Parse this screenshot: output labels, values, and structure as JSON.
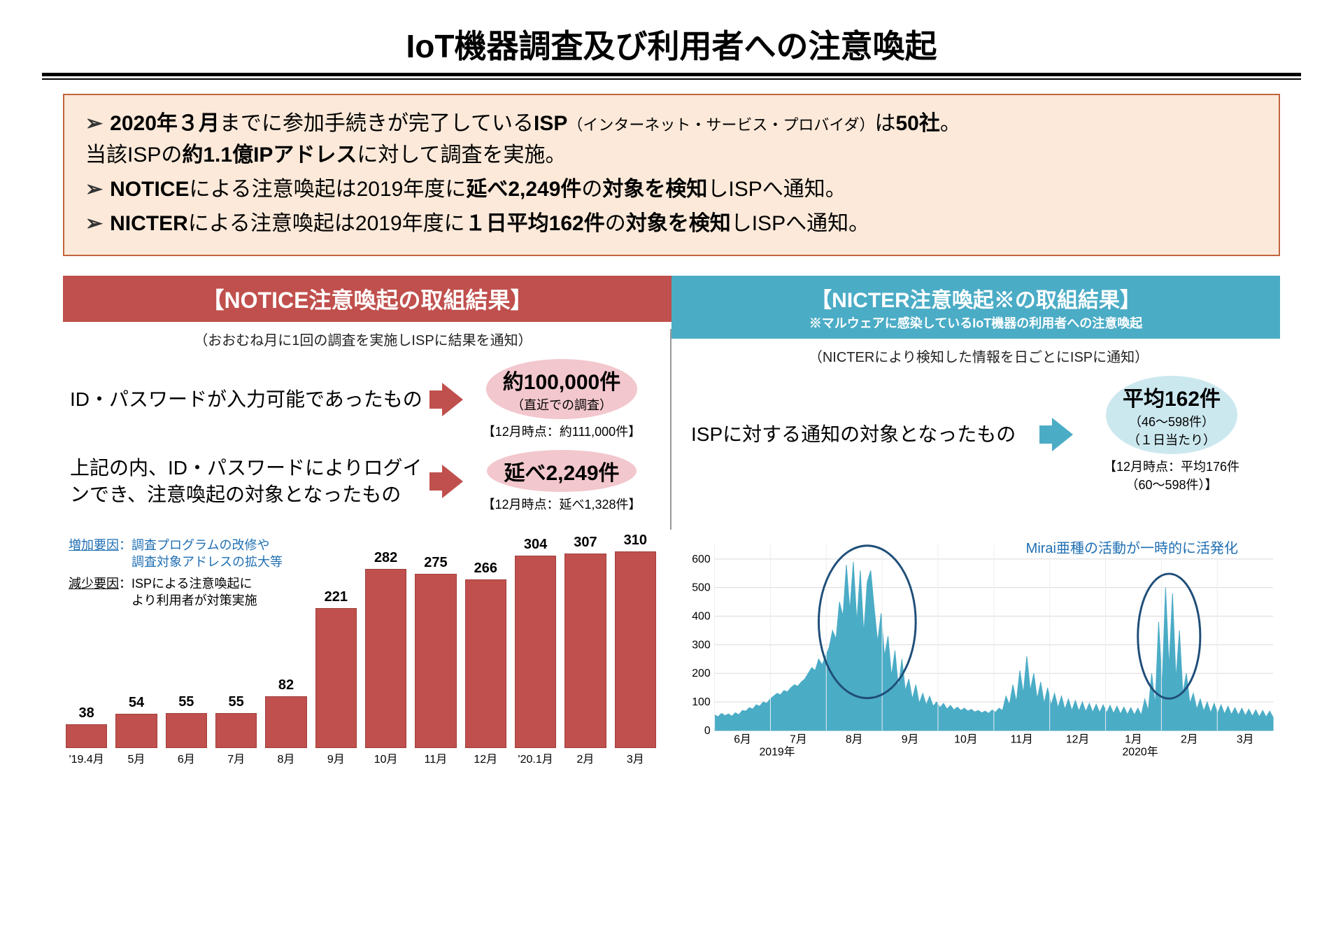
{
  "title": "IoT機器調査及び利用者への注意喚起",
  "summary": {
    "items": [
      "<b>2020年３月</b>までに参加手続きが完了している<b>ISP</b><span class='small'>（インターネット・サービス・プロバイダ）</span>は<b>50社</b>。<br>当該ISPの<b>約1.1億IPアドレス</b>に対して調査を実施。",
      "<b>NOTICE</b>による注意喚起は2019年度に<b>延べ2,249件</b>の<b>対象を検知</b>しISPへ通知。",
      "<b>NICTER</b>による注意喚起は2019年度に<b>１日平均162件</b>の<b>対象を検知</b>しISPへ通知。"
    ]
  },
  "panels": {
    "left": {
      "header": "【NOTICE注意喚起の取組結果】",
      "sub": "（おおむね月に1回の調査を実施しISPに結果を通知）",
      "stats": [
        {
          "desc": "ID・パスワードが入力可能であったもの",
          "big": "約100,000件",
          "small": "（直近での調査）",
          "note": "【12月時点：約111,000件】"
        },
        {
          "desc": "上記の内、ID・パスワードによりログインでき、注意喚起の対象となったもの",
          "big": "延べ2,249件",
          "small": "",
          "note": "【12月時点：延べ1,328件】"
        }
      ]
    },
    "right": {
      "header1": "【NICTER注意喚起※の取組結果】",
      "header2": "※マルウェアに感染しているIoT機器の利用者への注意喚起",
      "sub": "（NICTERにより検知した情報を日ごとにISPに通知）",
      "stats": [
        {
          "desc": "ISPに対する通知の対象となったもの",
          "big": "平均162件",
          "small": "（46～598件）<br>（１日当たり）",
          "note": "【12月時点：平均176件<br>（60～598件）】"
        }
      ]
    }
  },
  "bar_chart": {
    "type": "bar",
    "color": "#c0504d",
    "ylim": 320,
    "categories": [
      "'19.4月",
      "5月",
      "6月",
      "7月",
      "8月",
      "9月",
      "10月",
      "11月",
      "12月",
      "'20.1月",
      "2月",
      "3月"
    ],
    "values": [
      38,
      54,
      55,
      55,
      82,
      221,
      282,
      275,
      266,
      304,
      307,
      310
    ],
    "factors": {
      "inc_label": "増加要因",
      "inc_text": "：調査プログラムの改修や<br>　　　　　調査対象アドレスの拡大等",
      "dec_label": "減少要因",
      "dec_text": "：ISPによる注意喚起に<br>　　　　　より利用者が対策実施"
    }
  },
  "line_chart": {
    "type": "area",
    "color": "#4bacc6",
    "ylim": 650,
    "yticks": [
      0,
      100,
      200,
      300,
      400,
      500,
      600
    ],
    "xlabels": [
      "6月",
      "7月",
      "8月",
      "9月",
      "10月",
      "11月",
      "12月",
      "1月",
      "2月",
      "3月"
    ],
    "year_labels": {
      "2019": "2019年",
      "2020": "2020年"
    },
    "annotation": "Mirai亜種の活動が一時的に活発化",
    "data": [
      55,
      48,
      60,
      52,
      58,
      50,
      62,
      55,
      70,
      68,
      80,
      75,
      90,
      85,
      100,
      95,
      110,
      120,
      130,
      125,
      140,
      135,
      150,
      160,
      155,
      170,
      180,
      200,
      220,
      210,
      250,
      230,
      260,
      290,
      350,
      320,
      450,
      400,
      580,
      420,
      590,
      380,
      560,
      340,
      520,
      560,
      430,
      310,
      410,
      260,
      330,
      190,
      280,
      150,
      250,
      140,
      180,
      110,
      160,
      95,
      130,
      90,
      120,
      85,
      100,
      80,
      95,
      75,
      88,
      72,
      82,
      70,
      78,
      68,
      74,
      65,
      70,
      62,
      68,
      60,
      72,
      64,
      78,
      70,
      120,
      90,
      160,
      100,
      210,
      130,
      260,
      140,
      200,
      110,
      170,
      95,
      150,
      88,
      130,
      80,
      120,
      74,
      110,
      70,
      105,
      68,
      100,
      66,
      95,
      64,
      92,
      63,
      90,
      62,
      88,
      60,
      85,
      58,
      82,
      56,
      80,
      55,
      78,
      54,
      110,
      70,
      200,
      90,
      380,
      160,
      500,
      220,
      480,
      180,
      350,
      130,
      200,
      95,
      130,
      75,
      110,
      68,
      100,
      62,
      95,
      60,
      90,
      58,
      85,
      56,
      80,
      54,
      78,
      52,
      75,
      50,
      72,
      48,
      70,
      47,
      68,
      46
    ]
  }
}
